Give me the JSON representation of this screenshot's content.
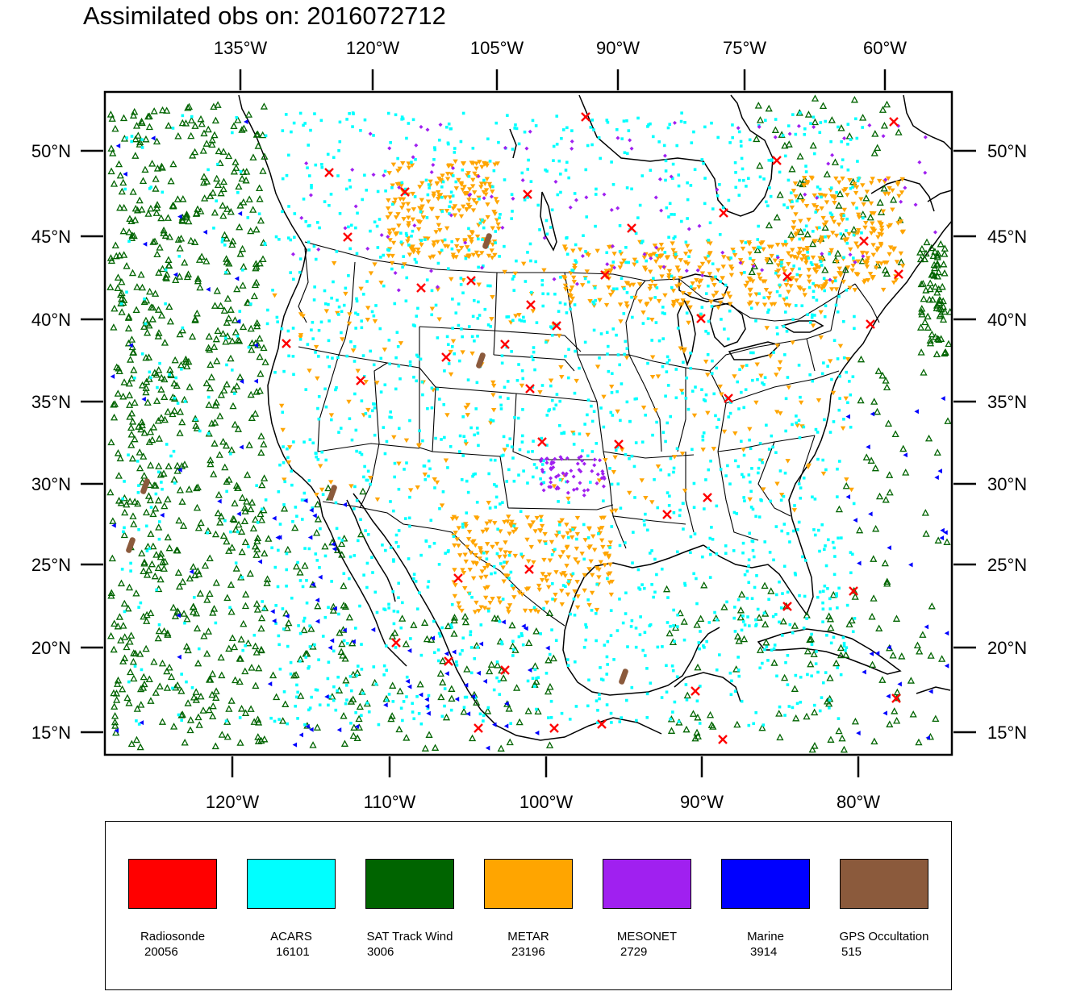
{
  "title": "Assimilated obs on: 2016072712",
  "top_axis": {
    "labels": [
      "135°W",
      "120°W",
      "105°W",
      "90°W",
      "75°W",
      "60°W"
    ]
  },
  "bottom_axis": {
    "labels": [
      "120°W",
      "110°W",
      "100°W",
      "90°W",
      "80°W"
    ]
  },
  "lat_axis": {
    "labels": [
      "50°N",
      "45°N",
      "40°N",
      "35°N",
      "30°N",
      "25°N",
      "20°N",
      "15°N"
    ]
  },
  "legend": [
    {
      "label": "Radiosonde",
      "count": "20056",
      "color": "#ff0000",
      "marker": "x"
    },
    {
      "label": "ACARS",
      "count": "16101",
      "color": "#00ffff",
      "marker": "square"
    },
    {
      "label": "SAT Track Wind",
      "count": "3006",
      "color": "#006400",
      "marker": "triangle-up"
    },
    {
      "label": "METAR",
      "count": "23196",
      "color": "#ffa500",
      "marker": "triangle-down"
    },
    {
      "label": "MESONET",
      "count": "2729",
      "color": "#a020f0",
      "marker": "diamond"
    },
    {
      "label": "Marine",
      "count": "3914",
      "color": "#0000ff",
      "marker": "triangle-left"
    },
    {
      "label": "GPS Occultation",
      "count": "515",
      "color": "#8b5a3c",
      "marker": "streak"
    }
  ]
}
